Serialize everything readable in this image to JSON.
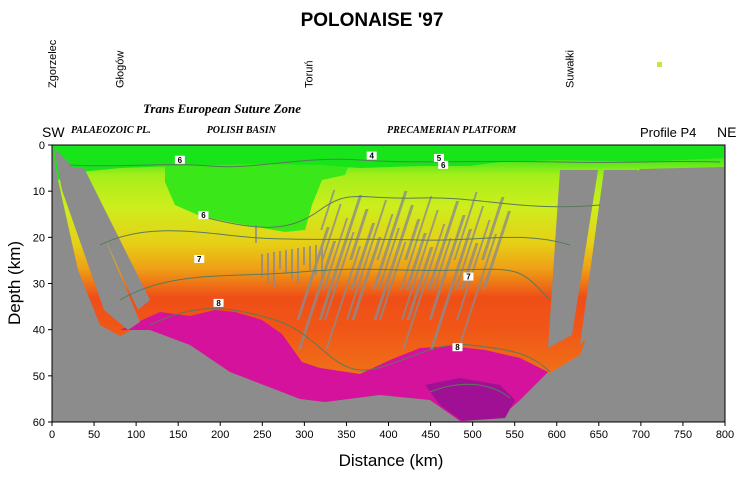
{
  "chart_data": {
    "type": "heatmap",
    "title": "POLONAISE '97",
    "xlabel": "Distance (km)",
    "ylabel": "Depth (km)",
    "xlim": [
      0,
      800
    ],
    "ylim": [
      0,
      60
    ],
    "y_inverted": true,
    "xticks": [
      0,
      50,
      100,
      150,
      200,
      250,
      300,
      350,
      400,
      450,
      500,
      550,
      600,
      650,
      700,
      750,
      800
    ],
    "yticks": [
      0,
      10,
      20,
      30,
      40,
      50,
      60
    ],
    "cities": [
      {
        "name": "Zgorzelec",
        "x": 0
      },
      {
        "name": "Głogów",
        "x": 80
      },
      {
        "name": "Toruń",
        "x": 305
      },
      {
        "name": "Suwałki",
        "x": 615
      }
    ],
    "zone_title": "Trans   European   Suture   Zone",
    "regions": [
      {
        "name": "PALAEOZOIC PL.",
        "x": 70
      },
      {
        "name": "POLISH BASIN",
        "x": 225
      },
      {
        "name": "PRECAMERIAN   PLATFORM",
        "x": 475
      }
    ],
    "left_corner": "SW",
    "right_corner": "NE",
    "profile_label": "Profile P4",
    "velocity_labels": [
      {
        "text": "4",
        "x": 380,
        "y": 2.3
      },
      {
        "text": "5",
        "x": 460,
        "y": 2.8
      },
      {
        "text": "6",
        "x": 465,
        "y": 4.3
      },
      {
        "text": "6",
        "x": 152,
        "y": 3.2
      },
      {
        "text": "6",
        "x": 180,
        "y": 15.2
      },
      {
        "text": "7",
        "x": 175,
        "y": 24.7
      },
      {
        "text": "7",
        "x": 495,
        "y": 28.5
      },
      {
        "text": "8",
        "x": 198,
        "y": 34.2
      },
      {
        "text": "8",
        "x": 482,
        "y": 43.8
      }
    ],
    "colors": {
      "no_coverage": "#8c8c8c",
      "v_le_5": "#18e41a",
      "v_6": "#3ee81a",
      "v_6_5": "#b8f01a",
      "v_7": "#e7cf17",
      "v_7_5": "#ef5d17",
      "v_8": "#d4129b",
      "v_8_3": "#9f1095",
      "contour": "#5a7a5a",
      "marker": "#cbe33a"
    }
  }
}
